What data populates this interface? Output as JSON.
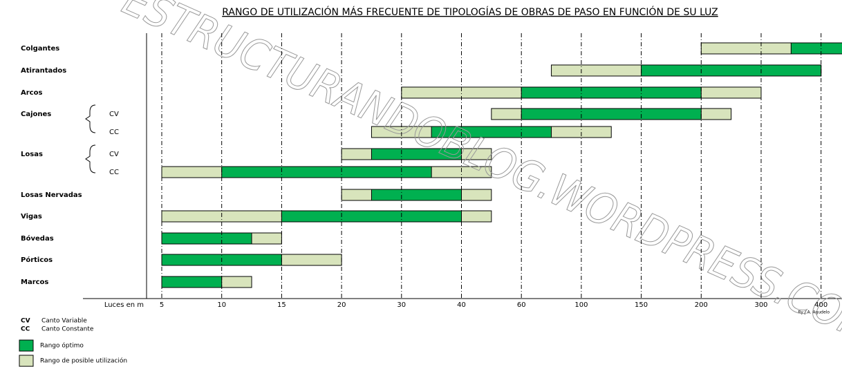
{
  "chart_data": {
    "type": "range-bar",
    "title": "RANGO DE UTILIZACIÓN MÁS FRECUENTE DE TIPOLOGÍAS DE OBRAS DE PASO EN FUNCIÓN DE SU LUZ",
    "categories": [
      "Colgantes",
      "Atirantados",
      "Arcos",
      "Cajones",
      null,
      "Losas",
      null,
      "Losas Nervadas",
      "Vigas",
      "Bóvedas",
      "Pórticos",
      "Marcos"
    ],
    "subcategories": [
      null,
      null,
      null,
      "CV",
      "CC",
      "CV",
      "CC",
      null,
      null,
      null,
      null,
      null
    ],
    "series": [
      {
        "name": "Rango óptimo",
        "color": "#00b050",
        "start": [
          350,
          150,
          60,
          60,
          35,
          25,
          10,
          25,
          15,
          5,
          5,
          5
        ],
        "end": [
          450,
          400,
          200,
          200,
          80,
          40,
          35,
          40,
          40,
          12.5,
          15,
          10
        ]
      },
      {
        "name": "Rango de posible utilización",
        "color": "#d8e4bc",
        "start": [
          200,
          80,
          30,
          50,
          25,
          20,
          5,
          20,
          5,
          5,
          5,
          5
        ],
        "end": [
          450,
          400,
          300,
          250,
          125,
          50,
          50,
          50,
          50,
          15,
          20,
          12.5
        ]
      }
    ],
    "x_label": "Luces en m",
    "xticks": [
      5,
      10,
      15,
      20,
      30,
      40,
      60,
      100,
      150,
      200,
      300,
      400
    ],
    "abbreviations": [
      {
        "code": "CV",
        "meaning": "Canto Variable"
      },
      {
        "code": "CC",
        "meaning": "Canto Constante"
      }
    ],
    "credit": "By J.A. Agudelo",
    "watermark": "ESTRUCTURANDOBLOG.WORDPRESS.COM",
    "grid": true
  }
}
